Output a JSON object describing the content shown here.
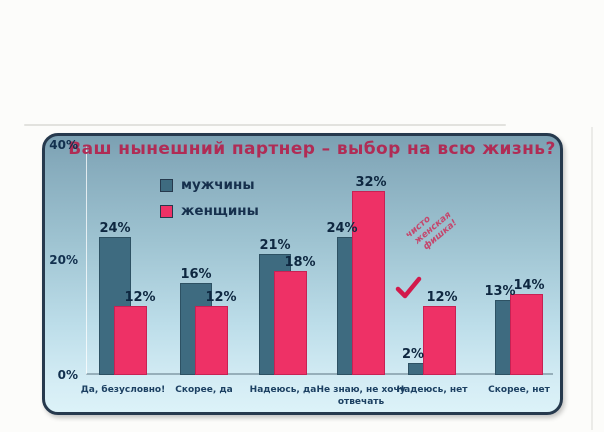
{
  "page": {
    "background_color": "#fcfcfa",
    "panel_border_color": "#26394d"
  },
  "chart_data": {
    "type": "bar",
    "title": "Ваш нынешний партнер – выбор на всю жизнь?",
    "title_color": "#b02c55",
    "categories": [
      "Да, безусловно!",
      "Скорее, да",
      "Надеюсь, да",
      "Не знаю, не хочу\nотвечать",
      "Надеюсь, нет",
      "Скорее, нет"
    ],
    "series": [
      {
        "name": "мужчины",
        "color": "#3e6b80",
        "values": [
          24,
          16,
          21,
          24,
          2,
          13
        ]
      },
      {
        "name": "женщины",
        "color": "#ee3166",
        "values": [
          12,
          12,
          18,
          32,
          12,
          14
        ]
      }
    ],
    "value_suffix": "%",
    "ylim": [
      0,
      40
    ],
    "yticks": [
      {
        "value": 40,
        "label": "40%"
      },
      {
        "value": 20,
        "label": "20%"
      },
      {
        "value": 0,
        "label": "0%"
      }
    ],
    "grid": false,
    "legend_position": "top-left-inside",
    "annotation": {
      "lines": [
        "чисто",
        "женская",
        "фишка!"
      ],
      "color": "#c4476d",
      "checkmark_color": "#d2194b"
    }
  }
}
